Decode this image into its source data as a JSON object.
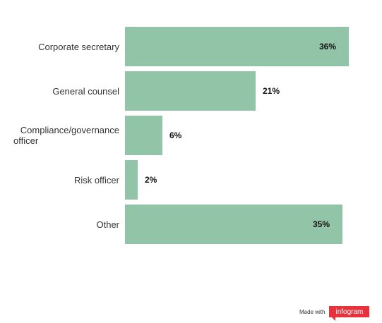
{
  "chart_data": {
    "type": "bar",
    "orientation": "horizontal",
    "categories": [
      "Corporate secretary",
      "General counsel",
      "Compliance/governance officer",
      "Risk officer",
      "Other"
    ],
    "category_lines": [
      [
        "Corporate secretary"
      ],
      [
        "General counsel"
      ],
      [
        "Compliance/governance",
        "officer"
      ],
      [
        "Risk officer"
      ],
      [
        "Other"
      ]
    ],
    "values": [
      36,
      21,
      6,
      2,
      35
    ],
    "value_labels": [
      "36%",
      "21%",
      "6%",
      "2%",
      "35%"
    ],
    "xlim": [
      0,
      36
    ],
    "bar_color": "#92c5a8",
    "title": "",
    "xlabel": "",
    "ylabel": "",
    "grid": false,
    "legend": "none"
  },
  "footer": {
    "made_with": "Made with",
    "brand": "infogram",
    "brand_color": "#e8313b"
  }
}
